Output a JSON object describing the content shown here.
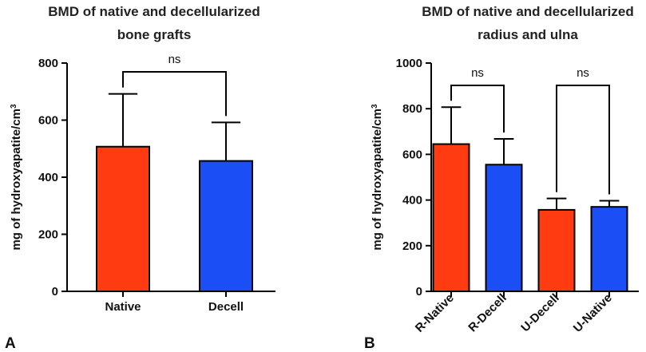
{
  "chart_data": [
    {
      "type": "bar",
      "panel_label": "A",
      "title": [
        "BMD of native and decellularized",
        "bone grafts"
      ],
      "ylabel_main": "mg of hydroxyapatite/cm",
      "ylabel_sup": "3",
      "xlabel": "",
      "ylim": [
        0,
        800
      ],
      "yticks": [
        0,
        200,
        400,
        600,
        800
      ],
      "categories": [
        "Native",
        "Decell"
      ],
      "values": [
        507,
        457
      ],
      "errors": [
        185,
        135
      ],
      "colors": [
        "#ff3b12",
        "#1b4ff5"
      ],
      "comparisons": [
        {
          "from": 0,
          "to": 1,
          "label": "ns"
        }
      ]
    },
    {
      "type": "bar",
      "panel_label": "B",
      "title": [
        "BMD of native and decellularized",
        "radius and ulna"
      ],
      "ylabel_main": "mg of hydroxyapatite/cm",
      "ylabel_sup": "3",
      "xlabel": "",
      "ylim": [
        0,
        1000
      ],
      "yticks": [
        0,
        200,
        400,
        600,
        800,
        1000
      ],
      "categories": [
        "R-Native",
        "R-Decell",
        "U-Decell",
        "U-Native"
      ],
      "values": [
        645,
        555,
        357,
        370
      ],
      "errors": [
        162,
        113,
        50,
        27
      ],
      "colors": [
        "#ff3b12",
        "#1b4ff5",
        "#ff3b12",
        "#1b4ff5"
      ],
      "comparisons": [
        {
          "from": 0,
          "to": 1,
          "label": "ns"
        },
        {
          "from": 2,
          "to": 3,
          "label": "ns"
        }
      ]
    }
  ]
}
